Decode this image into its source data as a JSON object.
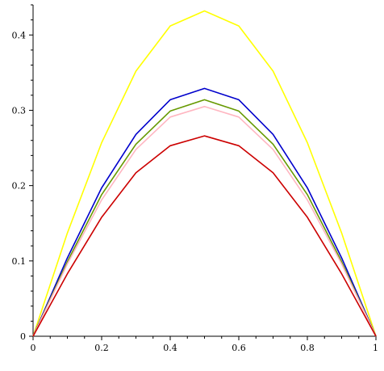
{
  "chart_data": {
    "type": "line",
    "title": "",
    "xlabel": "",
    "ylabel": "",
    "xlim": [
      0,
      1
    ],
    "ylim": [
      0,
      0.44
    ],
    "grid": false,
    "x_ticks": [
      {
        "value": 0,
        "label": "0"
      },
      {
        "value": 0.2,
        "label": "0.2"
      },
      {
        "value": 0.4,
        "label": "0.4"
      },
      {
        "value": 0.6,
        "label": "0.6"
      },
      {
        "value": 0.8,
        "label": "0.8"
      },
      {
        "value": 1,
        "label": "1"
      }
    ],
    "y_ticks": [
      {
        "value": 0,
        "label": "0"
      },
      {
        "value": 0.1,
        "label": "0.1"
      },
      {
        "value": 0.2,
        "label": "0.2"
      },
      {
        "value": 0.3,
        "label": "0.3"
      },
      {
        "value": 0.4,
        "label": "0.4"
      }
    ],
    "x": [
      0,
      0.1,
      0.2,
      0.3,
      0.4,
      0.5,
      0.6,
      0.7,
      0.8,
      0.9,
      1.0
    ],
    "series": [
      {
        "color": "#ffff00",
        "values": [
          0,
          0.137,
          0.257,
          0.352,
          0.412,
          0.432,
          0.412,
          0.352,
          0.257,
          0.137,
          0
        ]
      },
      {
        "color": "#0000cc",
        "values": [
          0,
          0.104,
          0.197,
          0.268,
          0.314,
          0.329,
          0.314,
          0.268,
          0.197,
          0.104,
          0
        ]
      },
      {
        "color": "#669900",
        "values": [
          0,
          0.099,
          0.188,
          0.255,
          0.299,
          0.314,
          0.299,
          0.255,
          0.188,
          0.099,
          0
        ]
      },
      {
        "color": "#ffb6c1",
        "values": [
          0,
          0.096,
          0.181,
          0.248,
          0.291,
          0.305,
          0.291,
          0.248,
          0.181,
          0.096,
          0
        ]
      },
      {
        "color": "#cc0000",
        "values": [
          0,
          0.083,
          0.158,
          0.217,
          0.253,
          0.266,
          0.253,
          0.217,
          0.158,
          0.083,
          0
        ]
      }
    ]
  }
}
